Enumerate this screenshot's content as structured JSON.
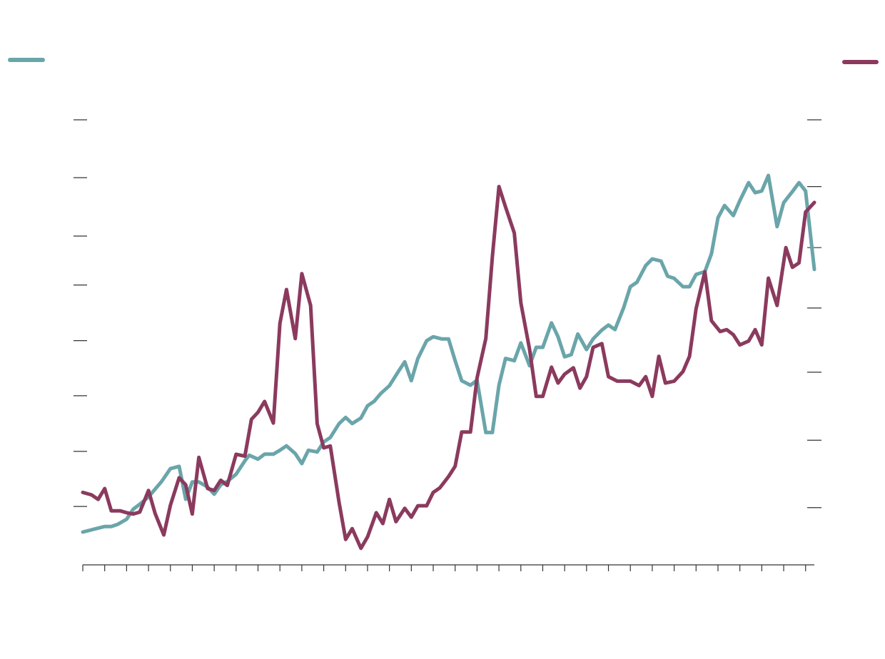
{
  "chart_data": {
    "type": "line",
    "xlim": [
      0,
      33.4
    ],
    "xticks": [
      0,
      1,
      2,
      3,
      4,
      5,
      6,
      7,
      8,
      9,
      10,
      11,
      12,
      13,
      14,
      15,
      16,
      17,
      18,
      19,
      20,
      21,
      22,
      23,
      24,
      25,
      26,
      27,
      28,
      29,
      30,
      31,
      32,
      33
    ],
    "ylim": [
      0,
      80
    ],
    "yticks": [
      10.5,
      20.4,
      30.4,
      40.3,
      50.3,
      59.1,
      69.6,
      80
    ],
    "y2lim": [
      0,
      70
    ],
    "y2ticks": [
      9.0,
      19.6,
      30.3,
      40.4,
      49.9,
      59.5,
      70
    ],
    "series": [
      {
        "color": "#6aa5aa",
        "axis": "y",
        "x": [
          0,
          0.5,
          1.0,
          1.3,
          1.6,
          2.0,
          2.3,
          2.6,
          3.0,
          3.3,
          3.6,
          4.0,
          4.4,
          4.7,
          5.0,
          5.3,
          5.7,
          6.0,
          6.3,
          6.6,
          7.0,
          7.4,
          7.6,
          8.0,
          8.3,
          8.7,
          9.0,
          9.3,
          9.7,
          10.0,
          10.3,
          10.7,
          11.0,
          11.3,
          11.7,
          12.0,
          12.3,
          12.7,
          13.0,
          13.3,
          13.6,
          14.0,
          14.4,
          14.7,
          15.0,
          15.3,
          15.7,
          16.0,
          16.4,
          16.7,
          17.0,
          17.3,
          17.7,
          18.0,
          18.4,
          18.7,
          19.0,
          19.3,
          19.7,
          20.0,
          20.4,
          20.7,
          21.0,
          21.4,
          21.7,
          22.0,
          22.3,
          22.6,
          23.0,
          23.3,
          23.7,
          24.0,
          24.3,
          24.7,
          25.0,
          25.3,
          25.7,
          26.0,
          26.4,
          26.7,
          27.0,
          27.4,
          27.7,
          28.0,
          28.4,
          28.7,
          29.0,
          29.3,
          29.7,
          30.0,
          30.4,
          30.7,
          31.0,
          31.3,
          31.7,
          32.0,
          32.4,
          32.7,
          33.0,
          33.4
        ],
        "values": [
          5.9,
          6.4,
          6.9,
          6.9,
          7.3,
          8.2,
          10.0,
          10.9,
          12.2,
          13.6,
          15.0,
          17.3,
          17.7,
          11.8,
          14.9,
          14.9,
          14.0,
          12.7,
          14.4,
          15.0,
          16.3,
          18.7,
          19.7,
          19.0,
          19.9,
          19.9,
          20.6,
          21.4,
          20.0,
          18.2,
          20.6,
          20.3,
          22.1,
          22.9,
          25.4,
          26.5,
          25.4,
          26.4,
          28.6,
          29.4,
          30.8,
          32.2,
          34.7,
          36.5,
          33.1,
          37.1,
          40.3,
          41.0,
          40.6,
          40.6,
          36.7,
          33.1,
          32.3,
          33.2,
          23.8,
          23.8,
          32.3,
          37.1,
          36.7,
          39.9,
          35.8,
          39.1,
          39.1,
          43.5,
          41.0,
          37.4,
          37.8,
          41.5,
          38.7,
          40.6,
          42.2,
          43.1,
          42.3,
          46.3,
          50.0,
          50.8,
          53.8,
          55.0,
          54.6,
          51.9,
          51.5,
          50.0,
          50.0,
          52.2,
          52.7,
          55.9,
          62.4,
          64.6,
          62.8,
          65.5,
          68.7,
          66.9,
          67.2,
          70.0,
          60.8,
          65.1,
          67.1,
          68.7,
          67.2,
          53.1
        ]
      },
      {
        "color": "#8b3a5e",
        "axis": "y2",
        "x": [
          0,
          0.4,
          0.7,
          1.0,
          1.3,
          1.7,
          2.0,
          2.3,
          2.6,
          3.0,
          3.3,
          3.7,
          4.0,
          4.4,
          4.7,
          5.0,
          5.3,
          5.7,
          6.0,
          6.3,
          6.6,
          7.0,
          7.4,
          7.7,
          8.0,
          8.3,
          8.7,
          9.0,
          9.3,
          9.7,
          10.0,
          10.4,
          10.7,
          11.0,
          11.3,
          11.7,
          12.0,
          12.3,
          12.7,
          13.0,
          13.4,
          13.7,
          14.0,
          14.3,
          14.7,
          15.0,
          15.3,
          15.7,
          16.0,
          16.3,
          16.7,
          17.0,
          17.3,
          17.7,
          18.0,
          18.4,
          18.7,
          19.0,
          19.3,
          19.7,
          20.0,
          20.4,
          20.7,
          21.0,
          21.4,
          21.7,
          22.0,
          22.4,
          22.7,
          23.0,
          23.3,
          23.7,
          24.0,
          24.4,
          24.7,
          25.0,
          25.4,
          25.7,
          26.0,
          26.3,
          26.6,
          27.0,
          27.4,
          27.7,
          28.0,
          28.4,
          28.7,
          29.1,
          29.4,
          29.7,
          30.0,
          30.4,
          30.7,
          31.0,
          31.3,
          31.7,
          32.1,
          32.4,
          32.7,
          33.0,
          33.4
        ],
        "values": [
          11.4,
          11.0,
          10.3,
          12.0,
          8.5,
          8.5,
          8.2,
          8.0,
          8.3,
          11.7,
          8.1,
          4.7,
          9.4,
          13.7,
          12.6,
          8.0,
          16.9,
          12.0,
          11.7,
          13.3,
          12.5,
          17.4,
          17.1,
          22.9,
          24.0,
          25.7,
          22.3,
          38.0,
          43.3,
          35.6,
          45.8,
          40.8,
          22.2,
          18.4,
          18.7,
          9.8,
          4.0,
          5.7,
          2.6,
          4.4,
          8.2,
          6.5,
          10.3,
          6.8,
          8.9,
          7.5,
          9.3,
          9.3,
          11.4,
          12.1,
          13.9,
          15.5,
          20.9,
          20.9,
          29.4,
          35.6,
          48.5,
          59.5,
          56.3,
          52.2,
          41.2,
          33.9,
          26.5,
          26.5,
          31.1,
          28.6,
          30.0,
          31.0,
          27.8,
          29.6,
          34.2,
          34.8,
          29.6,
          28.9,
          28.9,
          28.9,
          28.2,
          29.6,
          26.5,
          32.8,
          28.6,
          28.9,
          30.4,
          32.8,
          40.3,
          46.1,
          38.4,
          36.7,
          37.0,
          36.2,
          34.6,
          35.2,
          37.0,
          34.6,
          45.1,
          40.8,
          49.9,
          46.8,
          47.5,
          55.5,
          57.0
        ]
      }
    ]
  }
}
